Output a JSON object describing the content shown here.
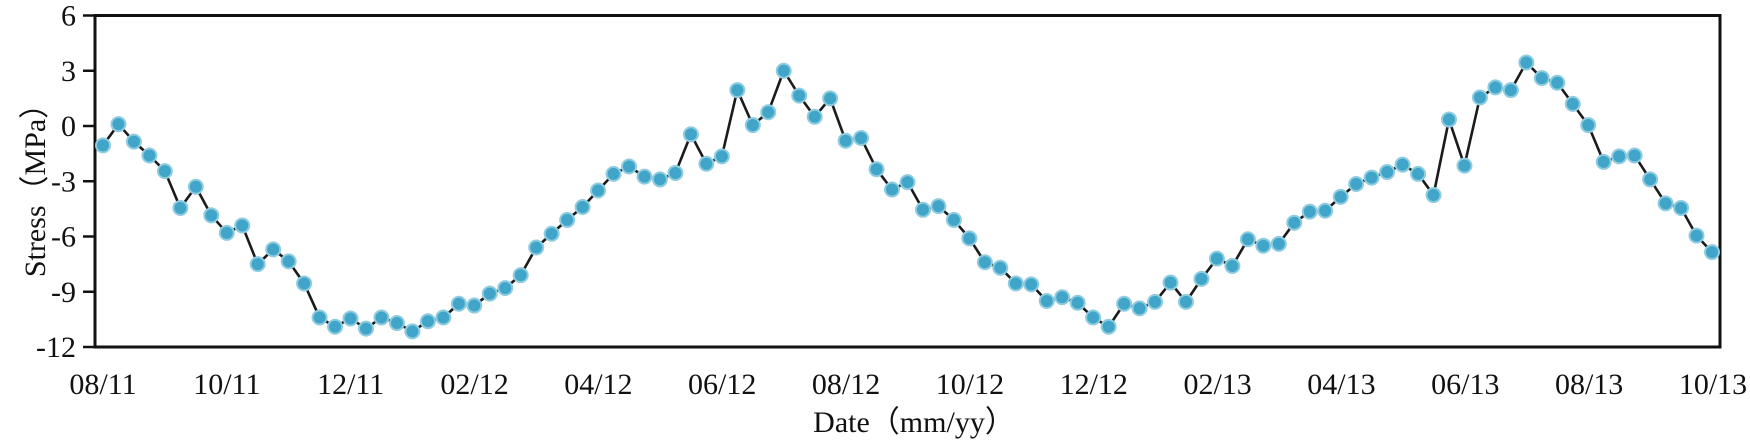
{
  "figure": {
    "background_color": "#ffffff",
    "axis_color": "#111111",
    "line_color": "#1b1b1b",
    "marker_color": "#41a5c9",
    "marker_edge_color": "#8fcce0"
  },
  "chart_data": {
    "type": "line",
    "title": "",
    "xlabel": "Date（mm/yy）",
    "ylabel": "Stress（MPa）",
    "x_tick_labels": [
      "08/11",
      "10/11",
      "12/11",
      "02/12",
      "04/12",
      "06/12",
      "08/12",
      "10/12",
      "12/12",
      "02/13",
      "04/13",
      "06/13",
      "08/13",
      "10/13"
    ],
    "x_tick_interval_months": 2,
    "y_tick_labels": [
      "6",
      "3",
      "0",
      "-3",
      "-6",
      "-9",
      "-12"
    ],
    "ylim": [
      -12,
      6
    ],
    "y_tick_step": 3,
    "grid": "off",
    "legend": "none",
    "frame": "box",
    "series": [
      {
        "name": "Stress",
        "marker": "circle",
        "sampling": "approx. weekly (4 points per month), 08/11 through 10/13",
        "values": [
          -1.05,
          0.1,
          -0.85,
          -1.6,
          -2.45,
          -4.45,
          -3.3,
          -4.85,
          -5.8,
          -5.4,
          -7.5,
          -6.7,
          -7.35,
          -8.55,
          -10.4,
          -10.9,
          -10.45,
          -11.0,
          -10.4,
          -10.7,
          -11.15,
          -10.6,
          -10.4,
          -9.65,
          -9.75,
          -9.1,
          -8.8,
          -8.1,
          -6.6,
          -5.85,
          -5.1,
          -4.4,
          -3.5,
          -2.6,
          -2.2,
          -2.75,
          -2.9,
          -2.55,
          -0.45,
          -2.05,
          -1.65,
          1.95,
          0.05,
          0.75,
          3.0,
          1.65,
          0.5,
          1.5,
          -0.8,
          -0.65,
          -2.35,
          -3.45,
          -3.05,
          -4.55,
          -4.35,
          -5.1,
          -6.1,
          -7.4,
          -7.7,
          -8.55,
          -8.6,
          -9.5,
          -9.3,
          -9.6,
          -10.4,
          -10.9,
          -9.65,
          -9.9,
          -9.55,
          -8.5,
          -9.55,
          -8.3,
          -7.2,
          -7.6,
          -6.15,
          -6.5,
          -6.4,
          -5.25,
          -4.65,
          -4.6,
          -3.85,
          -3.15,
          -2.8,
          -2.5,
          -2.1,
          -2.6,
          -3.75,
          0.35,
          -2.15,
          1.55,
          2.1,
          1.95,
          3.45,
          2.6,
          2.35,
          1.2,
          0.05,
          -1.95,
          -1.65,
          -1.6,
          -2.9,
          -4.2,
          -4.45,
          -5.95,
          -6.85
        ]
      }
    ]
  }
}
